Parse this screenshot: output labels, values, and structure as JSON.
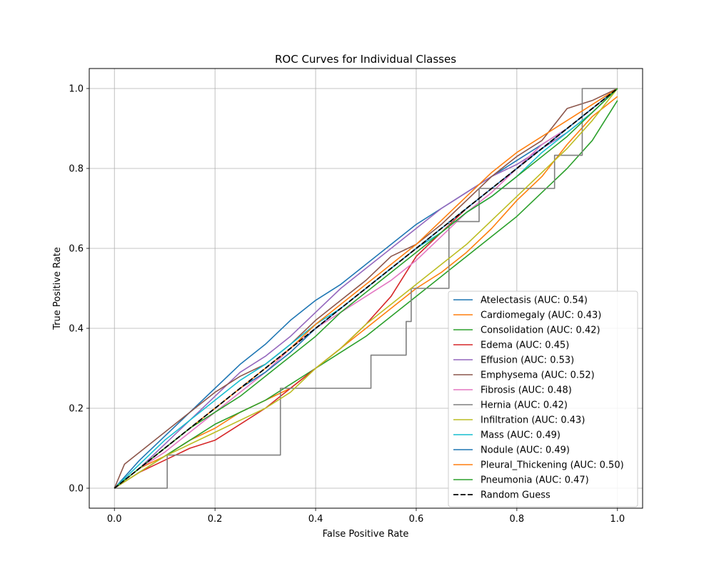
{
  "chart_data": {
    "type": "line",
    "title": "ROC Curves for Individual Classes",
    "xlabel": "False Positive Rate",
    "ylabel": "True Positive Rate",
    "xlim": [
      -0.05,
      1.05
    ],
    "ylim": [
      -0.05,
      1.05
    ],
    "xticks": [
      0.0,
      0.2,
      0.4,
      0.6,
      0.8,
      1.0
    ],
    "yticks": [
      0.0,
      0.2,
      0.4,
      0.6,
      0.8,
      1.0
    ],
    "xtick_labels": [
      "0.0",
      "0.2",
      "0.4",
      "0.6",
      "0.8",
      "1.0"
    ],
    "ytick_labels": [
      "0.0",
      "0.2",
      "0.4",
      "0.6",
      "0.8",
      "1.0"
    ],
    "grid": true,
    "legend_position": "lower-right",
    "series": [
      {
        "name": "Atelectasis (AUC: 0.54)",
        "color": "#1f77b4",
        "step": false,
        "x": [
          0,
          0.05,
          0.1,
          0.15,
          0.2,
          0.25,
          0.3,
          0.35,
          0.4,
          0.45,
          0.5,
          0.55,
          0.6,
          0.65,
          0.7,
          0.75,
          0.8,
          0.85,
          0.9,
          0.95,
          1.0
        ],
        "y": [
          0,
          0.07,
          0.13,
          0.19,
          0.25,
          0.31,
          0.36,
          0.42,
          0.47,
          0.51,
          0.56,
          0.61,
          0.66,
          0.7,
          0.74,
          0.78,
          0.82,
          0.86,
          0.9,
          0.95,
          1.0
        ]
      },
      {
        "name": "Cardiomegaly (AUC: 0.43)",
        "color": "#ff7f0e",
        "step": false,
        "x": [
          0,
          0.05,
          0.1,
          0.15,
          0.2,
          0.25,
          0.3,
          0.35,
          0.4,
          0.45,
          0.5,
          0.55,
          0.6,
          0.65,
          0.7,
          0.75,
          0.8,
          0.85,
          0.9,
          0.95,
          1.0
        ],
        "y": [
          0,
          0.05,
          0.08,
          0.12,
          0.15,
          0.19,
          0.22,
          0.25,
          0.3,
          0.35,
          0.4,
          0.45,
          0.5,
          0.54,
          0.59,
          0.65,
          0.72,
          0.78,
          0.86,
          0.93,
          0.98
        ]
      },
      {
        "name": "Consolidation (AUC: 0.42)",
        "color": "#2ca02c",
        "step": false,
        "x": [
          0,
          0.05,
          0.1,
          0.15,
          0.2,
          0.25,
          0.3,
          0.35,
          0.4,
          0.45,
          0.5,
          0.55,
          0.6,
          0.65,
          0.7,
          0.75,
          0.8,
          0.85,
          0.9,
          0.95,
          1.0
        ],
        "y": [
          0,
          0.04,
          0.08,
          0.12,
          0.16,
          0.19,
          0.22,
          0.26,
          0.3,
          0.34,
          0.38,
          0.43,
          0.48,
          0.53,
          0.58,
          0.63,
          0.68,
          0.74,
          0.8,
          0.87,
          0.97
        ]
      },
      {
        "name": "Edema (AUC: 0.45)",
        "color": "#d62728",
        "step": false,
        "x": [
          0,
          0.05,
          0.1,
          0.15,
          0.2,
          0.25,
          0.3,
          0.35,
          0.4,
          0.45,
          0.5,
          0.55,
          0.6,
          0.65,
          0.7,
          0.75,
          0.8,
          0.85,
          0.9,
          0.95,
          1.0
        ],
        "y": [
          0,
          0.04,
          0.07,
          0.1,
          0.12,
          0.16,
          0.2,
          0.25,
          0.3,
          0.35,
          0.41,
          0.48,
          0.58,
          0.64,
          0.7,
          0.75,
          0.8,
          0.85,
          0.9,
          0.95,
          1.0
        ]
      },
      {
        "name": "Effusion (AUC: 0.53)",
        "color": "#9467bd",
        "step": false,
        "x": [
          0,
          0.05,
          0.1,
          0.15,
          0.2,
          0.25,
          0.3,
          0.35,
          0.4,
          0.45,
          0.5,
          0.55,
          0.6,
          0.65,
          0.7,
          0.75,
          0.8,
          0.85,
          0.9,
          0.95,
          1.0
        ],
        "y": [
          0,
          0.05,
          0.11,
          0.17,
          0.23,
          0.29,
          0.33,
          0.38,
          0.44,
          0.5,
          0.55,
          0.6,
          0.65,
          0.7,
          0.74,
          0.78,
          0.81,
          0.85,
          0.89,
          0.94,
          1.0
        ]
      },
      {
        "name": "Emphysema (AUC: 0.52)",
        "color": "#8c564b",
        "step": true,
        "x": [
          0,
          0.02,
          0.05,
          0.1,
          0.15,
          0.2,
          0.25,
          0.3,
          0.35,
          0.4,
          0.45,
          0.5,
          0.55,
          0.6,
          0.65,
          0.7,
          0.75,
          0.8,
          0.85,
          0.9,
          0.95,
          1.0
        ],
        "y": [
          0,
          0.06,
          0.09,
          0.14,
          0.19,
          0.24,
          0.28,
          0.31,
          0.36,
          0.42,
          0.47,
          0.52,
          0.58,
          0.61,
          0.66,
          0.72,
          0.78,
          0.83,
          0.87,
          0.95,
          0.97,
          1.0
        ]
      },
      {
        "name": "Fibrosis (AUC: 0.48)",
        "color": "#e377c2",
        "step": false,
        "x": [
          0,
          0.05,
          0.1,
          0.15,
          0.2,
          0.25,
          0.3,
          0.35,
          0.4,
          0.45,
          0.5,
          0.55,
          0.6,
          0.65,
          0.7,
          0.75,
          0.8,
          0.85,
          0.9,
          0.95,
          1.0
        ],
        "y": [
          0,
          0.05,
          0.09,
          0.14,
          0.19,
          0.24,
          0.29,
          0.35,
          0.4,
          0.44,
          0.48,
          0.52,
          0.57,
          0.63,
          0.69,
          0.74,
          0.8,
          0.86,
          0.9,
          0.95,
          1.0
        ]
      },
      {
        "name": "Hernia (AUC: 0.42)",
        "color": "#7f7f7f",
        "step": true,
        "x": [
          0,
          0.105,
          0.105,
          0.33,
          0.33,
          0.51,
          0.51,
          0.58,
          0.58,
          0.59,
          0.59,
          0.665,
          0.665,
          0.725,
          0.725,
          0.875,
          0.875,
          0.93,
          0.93,
          1.0
        ],
        "y": [
          0,
          0,
          0.083,
          0.083,
          0.25,
          0.25,
          0.333,
          0.333,
          0.417,
          0.417,
          0.5,
          0.5,
          0.667,
          0.667,
          0.75,
          0.75,
          0.833,
          0.833,
          1.0,
          1.0
        ]
      },
      {
        "name": "Infiltration (AUC: 0.43)",
        "color": "#bcbd22",
        "step": false,
        "x": [
          0,
          0.05,
          0.1,
          0.15,
          0.2,
          0.25,
          0.3,
          0.35,
          0.4,
          0.45,
          0.5,
          0.55,
          0.6,
          0.65,
          0.7,
          0.75,
          0.8,
          0.85,
          0.9,
          0.95,
          1.0
        ],
        "y": [
          0,
          0.04,
          0.08,
          0.11,
          0.14,
          0.17,
          0.2,
          0.24,
          0.3,
          0.35,
          0.41,
          0.46,
          0.51,
          0.56,
          0.61,
          0.67,
          0.73,
          0.79,
          0.85,
          0.92,
          1.0
        ]
      },
      {
        "name": "Mass (AUC: 0.49)",
        "color": "#17becf",
        "step": false,
        "x": [
          0,
          0.05,
          0.1,
          0.15,
          0.2,
          0.25,
          0.3,
          0.35,
          0.4,
          0.45,
          0.5,
          0.55,
          0.6,
          0.65,
          0.7,
          0.75,
          0.8,
          0.85,
          0.9,
          0.95,
          1.0
        ],
        "y": [
          0,
          0.06,
          0.12,
          0.17,
          0.22,
          0.27,
          0.31,
          0.36,
          0.41,
          0.45,
          0.5,
          0.55,
          0.6,
          0.64,
          0.69,
          0.73,
          0.78,
          0.84,
          0.89,
          0.94,
          1.0
        ]
      },
      {
        "name": "Nodule (AUC: 0.49)",
        "color": "#1f77b4",
        "step": false,
        "x": [
          0,
          0.05,
          0.1,
          0.15,
          0.2,
          0.25,
          0.3,
          0.35,
          0.4,
          0.45,
          0.5,
          0.55,
          0.6,
          0.65,
          0.7,
          0.75,
          0.8,
          0.85,
          0.9,
          0.95,
          1.0
        ],
        "y": [
          0,
          0.05,
          0.1,
          0.15,
          0.2,
          0.25,
          0.29,
          0.34,
          0.4,
          0.45,
          0.5,
          0.55,
          0.6,
          0.65,
          0.7,
          0.75,
          0.8,
          0.85,
          0.9,
          0.95,
          1.0
        ]
      },
      {
        "name": "Pleural_Thickening (AUC: 0.50)",
        "color": "#ff7f0e",
        "step": false,
        "x": [
          0,
          0.05,
          0.1,
          0.15,
          0.2,
          0.25,
          0.3,
          0.35,
          0.4,
          0.45,
          0.5,
          0.55,
          0.6,
          0.65,
          0.7,
          0.75,
          0.8,
          0.85,
          0.9,
          0.95,
          1.0
        ],
        "y": [
          0,
          0.05,
          0.1,
          0.15,
          0.2,
          0.25,
          0.3,
          0.35,
          0.41,
          0.46,
          0.51,
          0.56,
          0.61,
          0.67,
          0.73,
          0.79,
          0.84,
          0.88,
          0.92,
          0.96,
          1.0
        ]
      },
      {
        "name": "Pneumonia (AUC: 0.47)",
        "color": "#2ca02c",
        "step": false,
        "x": [
          0,
          0.05,
          0.1,
          0.15,
          0.2,
          0.25,
          0.3,
          0.35,
          0.4,
          0.45,
          0.5,
          0.55,
          0.6,
          0.65,
          0.7,
          0.75,
          0.8,
          0.85,
          0.9,
          0.95,
          1.0
        ],
        "y": [
          0,
          0.05,
          0.1,
          0.15,
          0.19,
          0.23,
          0.28,
          0.33,
          0.38,
          0.44,
          0.49,
          0.54,
          0.59,
          0.64,
          0.69,
          0.73,
          0.78,
          0.83,
          0.88,
          0.94,
          1.0
        ]
      },
      {
        "name": "Random Guess",
        "color": "#000000",
        "step": false,
        "dashed": true,
        "x": [
          0,
          1
        ],
        "y": [
          0,
          1
        ]
      }
    ]
  }
}
